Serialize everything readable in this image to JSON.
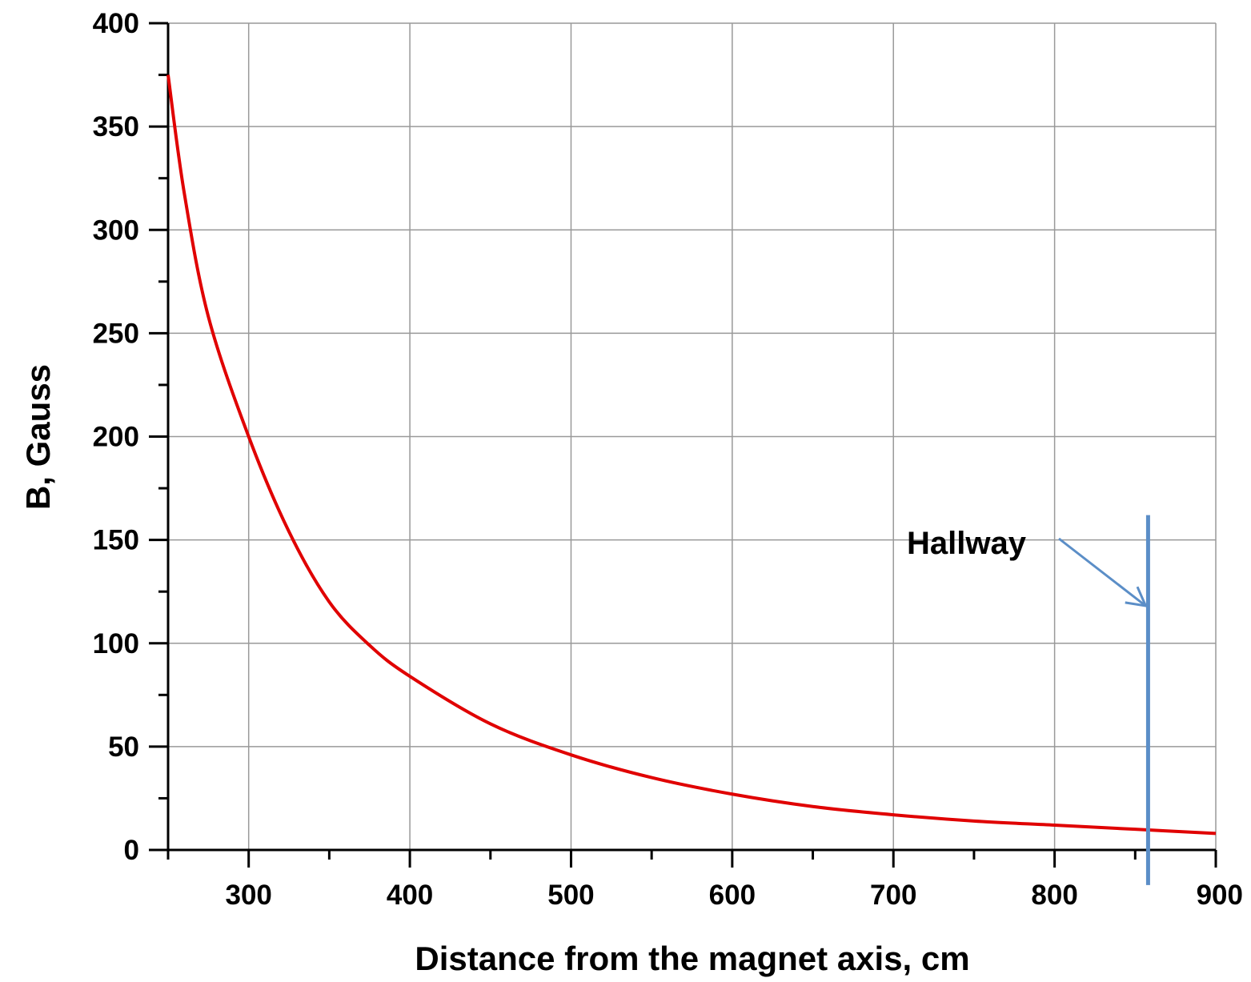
{
  "chart_data": {
    "type": "line",
    "title": "",
    "xlabel": "Distance from the magnet axis, cm",
    "ylabel": "B, Gauss",
    "xlim": [
      250,
      900
    ],
    "ylim": [
      0,
      400
    ],
    "x_ticks": [
      300,
      400,
      500,
      600,
      700,
      800,
      900
    ],
    "y_ticks": [
      0,
      50,
      100,
      150,
      200,
      250,
      300,
      350,
      400
    ],
    "x_tick_labels": [
      "300",
      "400",
      "500",
      "600",
      "700",
      "800",
      "900"
    ],
    "y_tick_labels": [
      "0",
      "50",
      "100",
      "150",
      "200",
      "250",
      "300",
      "350",
      "400"
    ],
    "grid": true,
    "series": [
      {
        "color": "#e00000",
        "x": [
          250,
          260,
          275,
          300,
          325,
          350,
          375,
          400,
          450,
          500,
          550,
          600,
          650,
          700,
          750,
          800,
          850,
          900
        ],
        "y": [
          375,
          318,
          258,
          200,
          154,
          120,
          99,
          84,
          61,
          46,
          35,
          27,
          21,
          17,
          14,
          12,
          10,
          8
        ]
      }
    ],
    "annotations": [
      {
        "text": "Hallway",
        "marker_x": 858,
        "marker_y_range": [
          -17,
          162
        ],
        "marker_color": "#5b8ec7",
        "arrow_color": "#5b8ec7"
      }
    ]
  }
}
